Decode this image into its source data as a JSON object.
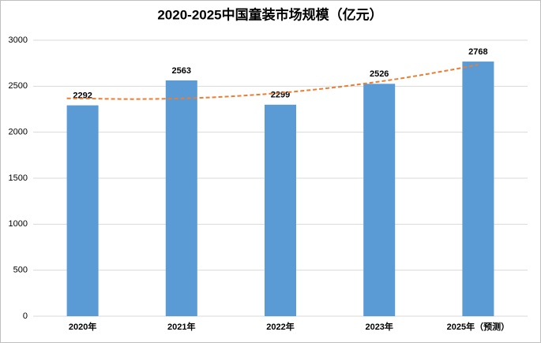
{
  "chart_data": {
    "type": "bar",
    "title": "2020-2025中国童装市场规模（亿元）",
    "categories": [
      "2020年",
      "2021年",
      "2022年",
      "2023年",
      "2025年（预测）"
    ],
    "values": [
      2292,
      2563,
      2299,
      2526,
      2768
    ],
    "color": "#5b9bd5",
    "ylim": [
      0,
      3000
    ],
    "yticks": [
      0,
      500,
      1000,
      1500,
      2000,
      2500,
      3000
    ],
    "grid": true,
    "trendline": {
      "type": "polynomial",
      "order": 2,
      "color": "#ed7d31"
    }
  }
}
